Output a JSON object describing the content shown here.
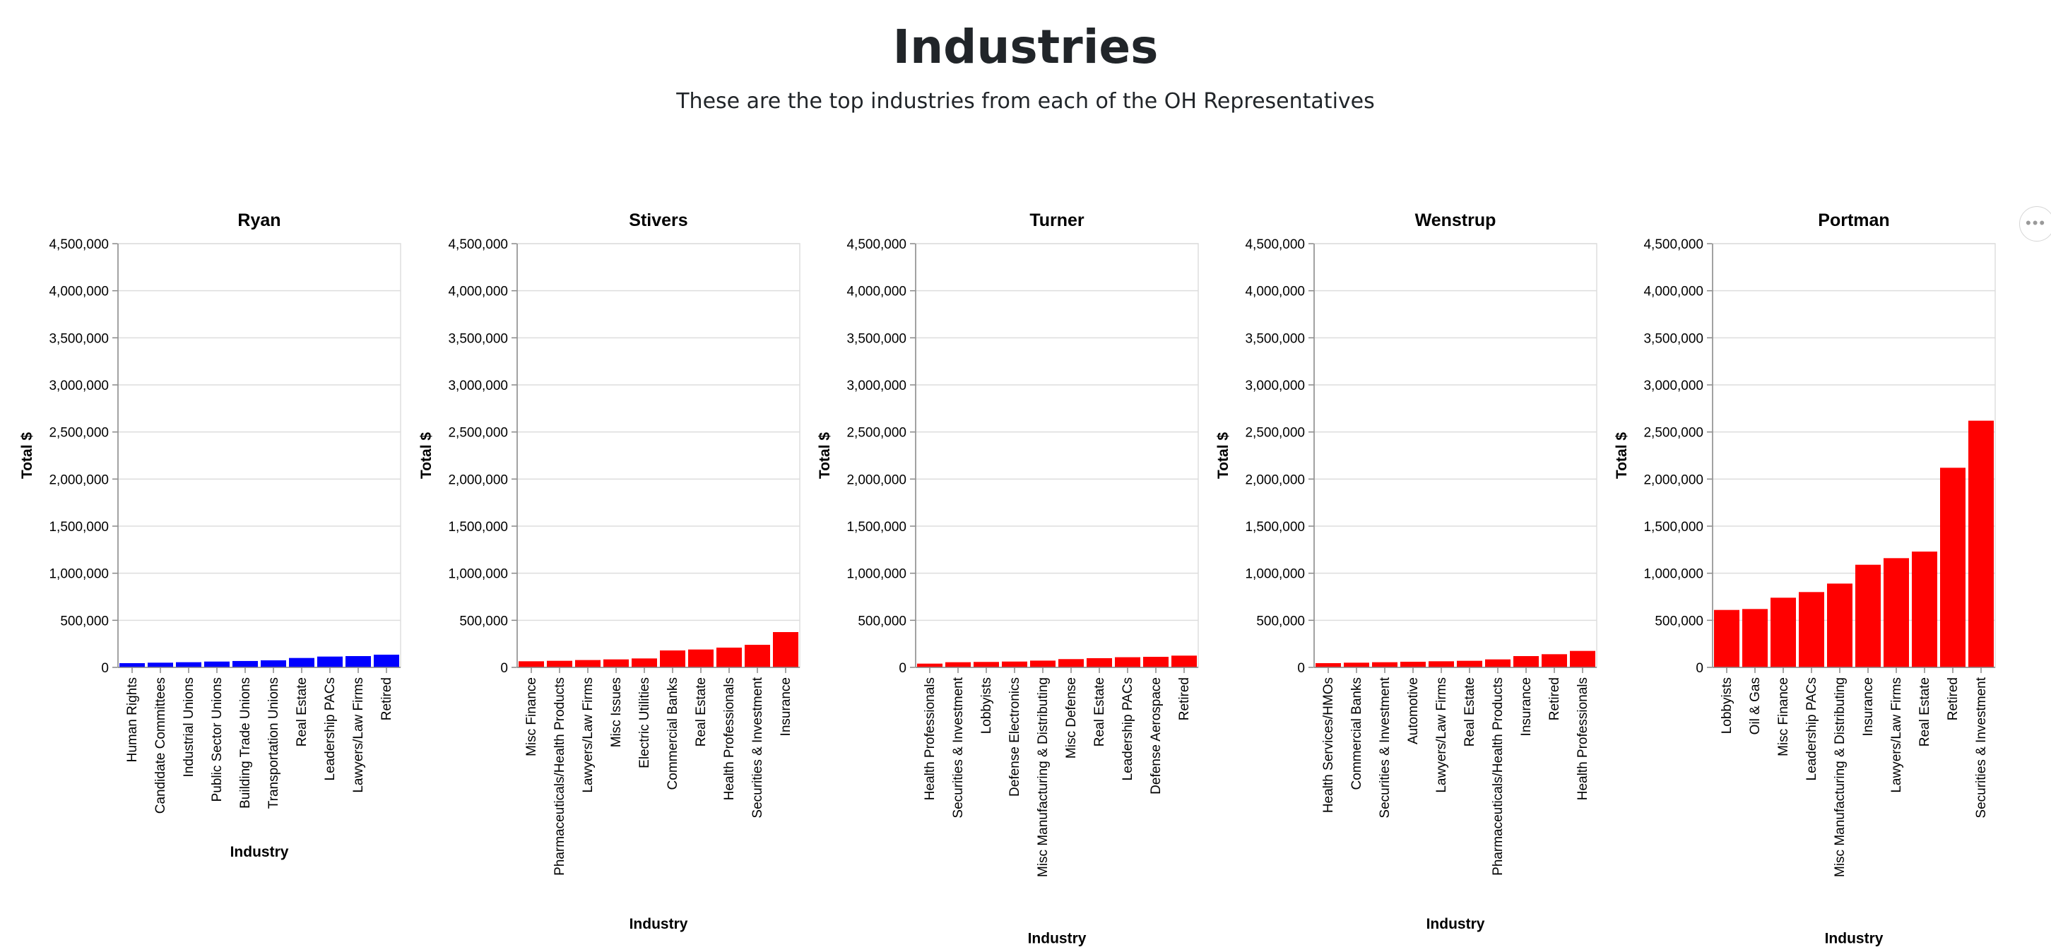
{
  "page": {
    "title": "Industries",
    "subtitle": "These are the top industries from each of the OH Representatives"
  },
  "colors": {
    "blue": "#0000ff",
    "red": "#ff0000",
    "grid": "#dddddd",
    "axis": "#888888"
  },
  "menu_icon": "ellipsis-icon",
  "chart_data": [
    {
      "type": "bar",
      "title": "Ryan",
      "xlabel": "Industry",
      "ylabel": "Total $",
      "ylim": [
        0,
        4500000
      ],
      "yticks": [
        "0",
        "500,000",
        "1,000,000",
        "1,500,000",
        "2,000,000",
        "2,500,000",
        "3,000,000",
        "3,500,000",
        "4,000,000",
        "4,500,000"
      ],
      "color": "#0000ff",
      "categories": [
        "Human Rights",
        "Candidate Committees",
        "Industrial Unions",
        "Public Sector Unions",
        "Building Trade Unions",
        "Transportation Unions",
        "Real Estate",
        "Leadership PACs",
        "Lawyers/Law Firms",
        "Retired"
      ],
      "values": [
        45000,
        50000,
        55000,
        62000,
        68000,
        75000,
        100000,
        115000,
        120000,
        135000
      ]
    },
    {
      "type": "bar",
      "title": "Stivers",
      "xlabel": "Industry",
      "ylabel": "Total $",
      "ylim": [
        0,
        4500000
      ],
      "yticks": [
        "0",
        "500,000",
        "1,000,000",
        "1,500,000",
        "2,000,000",
        "2,500,000",
        "3,000,000",
        "3,500,000",
        "4,000,000",
        "4,500,000"
      ],
      "color": "#ff0000",
      "categories": [
        "Misc Finance",
        "Pharmaceuticals/Health Products",
        "Lawyers/Law Firms",
        "Misc Issues",
        "Electric Utilities",
        "Commercial Banks",
        "Real Estate",
        "Health Professionals",
        "Securities & Investment",
        "Insurance"
      ],
      "values": [
        65000,
        70000,
        78000,
        85000,
        95000,
        180000,
        190000,
        210000,
        240000,
        375000
      ]
    },
    {
      "type": "bar",
      "title": "Turner",
      "xlabel": "Industry",
      "ylabel": "Total $",
      "ylim": [
        0,
        4500000
      ],
      "yticks": [
        "0",
        "500,000",
        "1,000,000",
        "1,500,000",
        "2,000,000",
        "2,500,000",
        "3,000,000",
        "3,500,000",
        "4,000,000",
        "4,500,000"
      ],
      "color": "#ff0000",
      "categories": [
        "Health Professionals",
        "Securities & Investment",
        "Lobbyists",
        "Defense Electronics",
        "Misc Manufacturing & Distributing",
        "Misc Defense",
        "Real Estate",
        "Leadership PACs",
        "Defense Aerospace",
        "Retired"
      ],
      "values": [
        40000,
        55000,
        58000,
        62000,
        72000,
        88000,
        98000,
        108000,
        112000,
        125000
      ]
    },
    {
      "type": "bar",
      "title": "Wenstrup",
      "xlabel": "Industry",
      "ylabel": "Total $",
      "ylim": [
        0,
        4500000
      ],
      "yticks": [
        "0",
        "500,000",
        "1,000,000",
        "1,500,000",
        "2,000,000",
        "2,500,000",
        "3,000,000",
        "3,500,000",
        "4,000,000",
        "4,500,000"
      ],
      "color": "#ff0000",
      "categories": [
        "Health Services/HMOs",
        "Commercial Banks",
        "Securities & Investment",
        "Automotive",
        "Lawyers/Law Firms",
        "Real Estate",
        "Pharmaceuticals/Health Products",
        "Insurance",
        "Retired",
        "Health Professionals"
      ],
      "values": [
        45000,
        50000,
        55000,
        60000,
        65000,
        70000,
        85000,
        120000,
        140000,
        175000
      ]
    },
    {
      "type": "bar",
      "title": "Portman",
      "xlabel": "Industry",
      "ylabel": "Total $",
      "ylim": [
        0,
        4500000
      ],
      "yticks": [
        "0",
        "500,000",
        "1,000,000",
        "1,500,000",
        "2,000,000",
        "2,500,000",
        "3,000,000",
        "3,500,000",
        "4,000,000",
        "4,500,000"
      ],
      "color": "#ff0000",
      "categories": [
        "Lobbyists",
        "Oil & Gas",
        "Misc Finance",
        "Leadership PACs",
        "Misc Manufacturing & Distributing",
        "Insurance",
        "Lawyers/Law Firms",
        "Real Estate",
        "Retired",
        "Securities & Investment"
      ],
      "values": [
        610000,
        620000,
        740000,
        800000,
        890000,
        1090000,
        1160000,
        1230000,
        2120000,
        2620000
      ]
    }
  ]
}
